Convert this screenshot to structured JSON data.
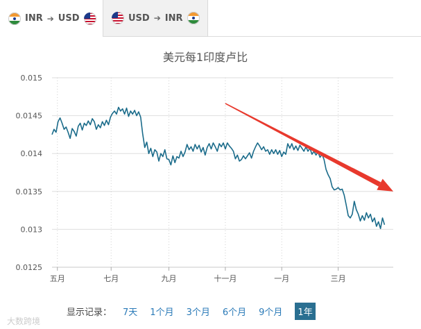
{
  "tabs": [
    {
      "from": "INR",
      "to": "USD",
      "from_flag": "india-flag-icon",
      "to_flag": "us-flag-icon",
      "active": true
    },
    {
      "from": "USD",
      "to": "INR",
      "from_flag": "us-flag-icon",
      "to_flag": "india-flag-icon",
      "active": false
    }
  ],
  "arrow_glyph": "➔",
  "footer": {
    "label": "显示记录：",
    "ranges": [
      "7天",
      "1个月",
      "3个月",
      "6个月",
      "9个月",
      "1年"
    ],
    "active_range": "1年"
  },
  "watermark": "大数跨境",
  "colors": {
    "line": "#1a6b8a",
    "trend_arrow": "#e8392d",
    "active_range_bg": "#2a6f91",
    "link": "#2a7ab8"
  },
  "chart_data": {
    "type": "line",
    "title": "美元每1印度卢比",
    "xlabel": "",
    "ylabel": "",
    "ylim": [
      0.0125,
      0.015
    ],
    "yticks": [
      0.0125,
      0.013,
      0.0135,
      0.014,
      0.0145,
      0.015
    ],
    "ytick_labels": [
      "0.0125",
      "0.013",
      "0.0135",
      "0.014",
      "0.0145",
      "0.015"
    ],
    "xlim": [
      0,
      50.8
    ],
    "xticks": [
      {
        "x": 0.8,
        "label": "五月"
      },
      {
        "x": 8.8,
        "label": "七月"
      },
      {
        "x": 17.4,
        "label": "九月"
      },
      {
        "x": 25.8,
        "label": "十一月"
      },
      {
        "x": 34.2,
        "label": "一月"
      },
      {
        "x": 42.6,
        "label": "三月"
      }
    ],
    "grid": true,
    "series": [
      {
        "values": [
          [
            0,
            0.01425
          ],
          [
            0.3,
            0.01432
          ],
          [
            0.6,
            0.01428
          ],
          [
            0.9,
            0.01442
          ],
          [
            1.2,
            0.01447
          ],
          [
            1.5,
            0.0144
          ],
          [
            1.8,
            0.01432
          ],
          [
            2.1,
            0.01435
          ],
          [
            2.4,
            0.01428
          ],
          [
            2.7,
            0.0142
          ],
          [
            3.0,
            0.01433
          ],
          [
            3.3,
            0.01429
          ],
          [
            3.6,
            0.01423
          ],
          [
            3.9,
            0.01436
          ],
          [
            4.2,
            0.0144
          ],
          [
            4.5,
            0.01431
          ],
          [
            4.8,
            0.0144
          ],
          [
            5.1,
            0.01437
          ],
          [
            5.4,
            0.01443
          ],
          [
            5.7,
            0.01438
          ],
          [
            6.0,
            0.01446
          ],
          [
            6.3,
            0.01442
          ],
          [
            6.6,
            0.01432
          ],
          [
            6.9,
            0.01438
          ],
          [
            7.2,
            0.01434
          ],
          [
            7.5,
            0.01442
          ],
          [
            7.8,
            0.01437
          ],
          [
            8.1,
            0.01444
          ],
          [
            8.4,
            0.01438
          ],
          [
            8.7,
            0.01448
          ],
          [
            9.0,
            0.01453
          ],
          [
            9.3,
            0.01456
          ],
          [
            9.6,
            0.01452
          ],
          [
            9.9,
            0.01461
          ],
          [
            10.2,
            0.01456
          ],
          [
            10.5,
            0.01459
          ],
          [
            10.8,
            0.01452
          ],
          [
            11.1,
            0.0146
          ],
          [
            11.4,
            0.01449
          ],
          [
            11.7,
            0.01456
          ],
          [
            12.0,
            0.01452
          ],
          [
            12.3,
            0.01457
          ],
          [
            12.6,
            0.0145
          ],
          [
            12.9,
            0.01455
          ],
          [
            13.2,
            0.01448
          ],
          [
            13.5,
            0.01426
          ],
          [
            13.8,
            0.01408
          ],
          [
            14.1,
            0.01415
          ],
          [
            14.4,
            0.014
          ],
          [
            14.7,
            0.01407
          ],
          [
            15.0,
            0.01396
          ],
          [
            15.3,
            0.01405
          ],
          [
            15.6,
            0.01402
          ],
          [
            15.9,
            0.0139
          ],
          [
            16.2,
            0.014
          ],
          [
            16.5,
            0.01396
          ],
          [
            16.8,
            0.01405
          ],
          [
            17.1,
            0.01393
          ],
          [
            17.4,
            0.01392
          ],
          [
            17.7,
            0.01385
          ],
          [
            18.0,
            0.01397
          ],
          [
            18.3,
            0.01388
          ],
          [
            18.6,
            0.01396
          ],
          [
            18.9,
            0.01394
          ],
          [
            19.2,
            0.01403
          ],
          [
            19.5,
            0.01396
          ],
          [
            19.8,
            0.01402
          ],
          [
            20.1,
            0.01412
          ],
          [
            20.4,
            0.01405
          ],
          [
            20.7,
            0.01409
          ],
          [
            21.0,
            0.01403
          ],
          [
            21.3,
            0.01412
          ],
          [
            21.6,
            0.01406
          ],
          [
            21.9,
            0.01411
          ],
          [
            22.2,
            0.01402
          ],
          [
            22.5,
            0.01408
          ],
          [
            22.8,
            0.01398
          ],
          [
            23.1,
            0.01408
          ],
          [
            23.4,
            0.01413
          ],
          [
            23.7,
            0.01406
          ],
          [
            24.0,
            0.01414
          ],
          [
            24.3,
            0.01409
          ],
          [
            24.6,
            0.01403
          ],
          [
            24.9,
            0.01413
          ],
          [
            25.2,
            0.01409
          ],
          [
            25.5,
            0.01414
          ],
          [
            25.8,
            0.01406
          ],
          [
            26.1,
            0.01414
          ],
          [
            26.4,
            0.0141
          ],
          [
            26.7,
            0.01407
          ],
          [
            27.0,
            0.01403
          ],
          [
            27.3,
            0.01393
          ],
          [
            27.6,
            0.01398
          ],
          [
            27.9,
            0.0139
          ],
          [
            28.2,
            0.01392
          ],
          [
            28.5,
            0.01397
          ],
          [
            28.8,
            0.01393
          ],
          [
            29.1,
            0.01397
          ],
          [
            29.4,
            0.01401
          ],
          [
            29.7,
            0.01394
          ],
          [
            30.0,
            0.01403
          ],
          [
            30.3,
            0.01409
          ],
          [
            30.6,
            0.01414
          ],
          [
            30.9,
            0.0141
          ],
          [
            31.2,
            0.01405
          ],
          [
            31.5,
            0.01409
          ],
          [
            31.8,
            0.01403
          ],
          [
            32.1,
            0.01405
          ],
          [
            32.4,
            0.01399
          ],
          [
            32.7,
            0.01405
          ],
          [
            33.0,
            0.014
          ],
          [
            33.3,
            0.01405
          ],
          [
            33.6,
            0.01399
          ],
          [
            33.9,
            0.01404
          ],
          [
            34.2,
            0.01396
          ],
          [
            34.5,
            0.01402
          ],
          [
            34.8,
            0.01399
          ],
          [
            35.1,
            0.01413
          ],
          [
            35.4,
            0.01407
          ],
          [
            35.7,
            0.01413
          ],
          [
            36.0,
            0.01405
          ],
          [
            36.3,
            0.0141
          ],
          [
            36.6,
            0.01404
          ],
          [
            36.9,
            0.01411
          ],
          [
            37.2,
            0.01407
          ],
          [
            37.5,
            0.01403
          ],
          [
            37.8,
            0.01409
          ],
          [
            38.1,
            0.01403
          ],
          [
            38.4,
            0.01407
          ],
          [
            38.7,
            0.01399
          ],
          [
            39.0,
            0.01403
          ],
          [
            39.3,
            0.01398
          ],
          [
            39.6,
            0.01402
          ],
          [
            39.9,
            0.01395
          ],
          [
            40.2,
            0.01399
          ],
          [
            40.5,
            0.01392
          ],
          [
            40.8,
            0.01379
          ],
          [
            41.1,
            0.01372
          ],
          [
            41.4,
            0.01367
          ],
          [
            41.7,
            0.01356
          ],
          [
            42.0,
            0.01352
          ],
          [
            42.3,
            0.01353
          ],
          [
            42.6,
            0.01355
          ],
          [
            42.9,
            0.01352
          ],
          [
            43.2,
            0.01353
          ],
          [
            43.5,
            0.01345
          ],
          [
            43.8,
            0.01332
          ],
          [
            44.1,
            0.01318
          ],
          [
            44.4,
            0.01315
          ],
          [
            44.7,
            0.0132
          ],
          [
            45.0,
            0.01337
          ],
          [
            45.3,
            0.01326
          ],
          [
            45.6,
            0.0132
          ],
          [
            45.9,
            0.01311
          ],
          [
            46.2,
            0.01318
          ],
          [
            46.5,
            0.01312
          ],
          [
            46.8,
            0.01322
          ],
          [
            47.1,
            0.01315
          ],
          [
            47.4,
            0.0132
          ],
          [
            47.7,
            0.0131
          ],
          [
            48.0,
            0.01315
          ],
          [
            48.3,
            0.01304
          ],
          [
            48.6,
            0.0131
          ],
          [
            48.9,
            0.01301
          ],
          [
            49.2,
            0.01315
          ],
          [
            49.5,
            0.01306
          ]
        ]
      }
    ],
    "trend_arrow": {
      "from": [
        25.8,
        0.01466
      ],
      "to": [
        50.8,
        0.0135
      ]
    }
  }
}
